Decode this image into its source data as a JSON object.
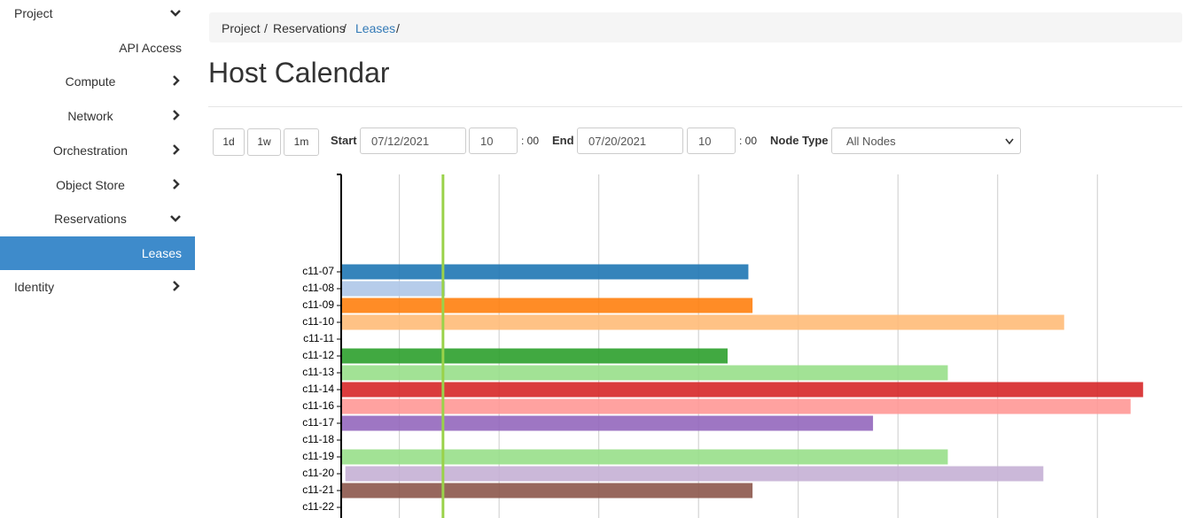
{
  "sidebar": {
    "items": [
      "Project",
      "API Access",
      "Compute",
      "Network",
      "Orchestration",
      "Object Store",
      "Reservations",
      "Leases",
      "Identity"
    ]
  },
  "breadcrumb": {
    "items": [
      "Project",
      "Reservations",
      "Leases"
    ],
    "separator": "/"
  },
  "header": {
    "title": "Host Calendar"
  },
  "controls": {
    "buttons": [
      "1d",
      "1w",
      "1m"
    ],
    "start_label": "Start",
    "start_date": "07/12/2021",
    "start_hour": "10",
    "start_minutes": ": 00",
    "end_label": "End",
    "end_date": "07/20/2021",
    "end_hour": "10",
    "end_minutes": ": 00",
    "node_type_label": "Node Type",
    "node_type_value": "All Nodes"
  },
  "chart_data": {
    "type": "gantt",
    "categories": [
      "c11-07",
      "c11-08",
      "c11-09",
      "c11-10",
      "c11-11",
      "c11-12",
      "c11-13",
      "c11-14",
      "c11-16",
      "c11-17",
      "c11-18",
      "c11-19",
      "c11-20",
      "c11-21",
      "c11-22"
    ],
    "starts": [
      0,
      0,
      0,
      0,
      null,
      0,
      0,
      0,
      0,
      0,
      null,
      0,
      1,
      0,
      null
    ],
    "ends": [
      98,
      25,
      99,
      174,
      null,
      93,
      146,
      193,
      190,
      128,
      null,
      146,
      169,
      99,
      null
    ],
    "colors": [
      "#1f77b4",
      "#aec7e8",
      "#ff7f0e",
      "#ffbb78",
      null,
      "#2ca02c",
      "#98df8a",
      "#d62728",
      "#ff9896",
      "#9467bd",
      null,
      "#98df8a",
      "#c5b0d5",
      "#8c564b",
      null
    ],
    "xlim": [
      0,
      202
    ],
    "xticks": [
      14,
      38,
      62,
      86,
      110,
      134,
      158,
      182
    ],
    "grid": true,
    "now": 24.5,
    "now_color": "#9ad24a"
  }
}
